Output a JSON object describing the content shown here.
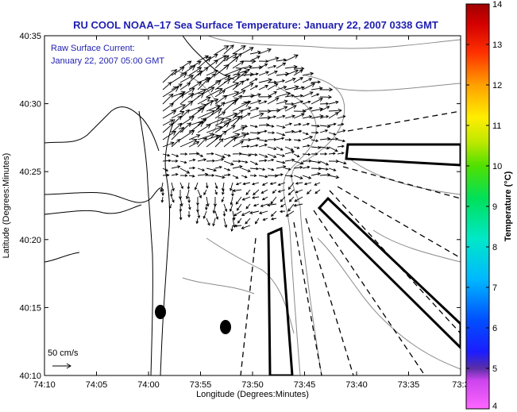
{
  "title": "RU COOL  NOAA–17  Sea Surface Temperature:  January 22, 2007 0338 GMT",
  "annotation": {
    "line1": "Raw Surface Current:",
    "line2": "January 22, 2007 05:00 GMT"
  },
  "scale_label": "50 cm/s",
  "x_axis": {
    "label": "Longitude (Degrees:Minutes)",
    "ticks": [
      "74:10",
      "74:05",
      "74:00",
      "73:55",
      "73:50",
      "73:45",
      "73:40",
      "73:35",
      "73:3"
    ]
  },
  "y_axis": {
    "label": "Latitude (Degrees:Minutes)",
    "ticks": [
      "40:35",
      "40:30",
      "40:25",
      "40:20",
      "40:15",
      "40:10"
    ]
  },
  "colorbar": {
    "label": "Temperature (°C)",
    "ticks": [
      "14",
      "13",
      "12",
      "11",
      "10",
      "9",
      "8",
      "7",
      "6",
      "5",
      "4"
    ],
    "range": [
      4,
      14
    ]
  },
  "colors": {
    "title": "#1f1fb0",
    "annotation": "#1f1fb0",
    "coast": "#000000",
    "bathymetry": "#8a8a8a",
    "vectors": "#000000"
  }
}
